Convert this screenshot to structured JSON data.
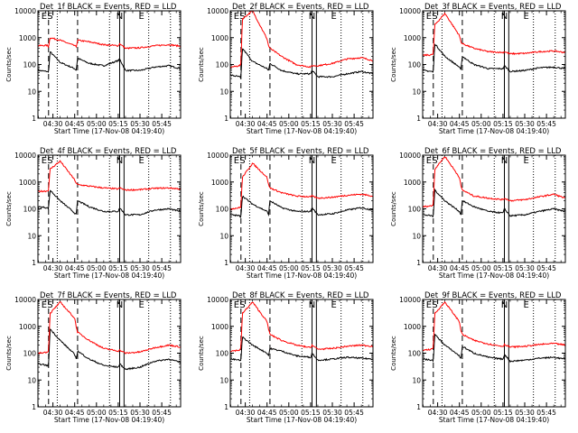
{
  "figure": {
    "ylabel": "Counts/sec",
    "xlabel": "Start Time (17-Nov-08 04:19:40)",
    "time_ticks": [
      "04:30",
      "04:45",
      "05:00",
      "05:15",
      "05:30",
      "05:45"
    ],
    "y_ticks": [
      "1",
      "10",
      "100",
      "1000",
      "10000"
    ],
    "ylim": [
      1,
      10000
    ],
    "y_scale": "log",
    "x_axis_start": "04:19:40",
    "x_axis_end": "05:58:00",
    "series_colors": {
      "events": "#000000",
      "lld": "#ff0000"
    },
    "markers": {
      "letters": [
        {
          "label": "E",
          "time": "04:24"
        },
        {
          "label": "S",
          "time": "04:28"
        },
        {
          "label": "N",
          "time": "05:16"
        },
        {
          "label": "E",
          "time": "05:31"
        }
      ],
      "solid_lines": [
        "05:16",
        "05:19"
      ],
      "dashed_lines": [
        "04:27",
        "04:47"
      ],
      "dotted_lines": [
        "04:33",
        "05:09",
        "05:36",
        "05:51"
      ]
    }
  },
  "chart_data": [
    {
      "type": "line",
      "title": "Det_1f BLACK = Events, RED = LLD",
      "series": [
        {
          "name": "Events",
          "x": [
            "04:20",
            "04:26",
            "04:27",
            "04:28",
            "04:35",
            "04:45",
            "04:46",
            "04:47",
            "04:55",
            "05:05",
            "05:15",
            "05:16",
            "05:20",
            "05:30",
            "05:40",
            "05:50",
            "05:58"
          ],
          "y": [
            60,
            55,
            50,
            300,
            120,
            70,
            60,
            170,
            110,
            90,
            140,
            160,
            60,
            60,
            80,
            90,
            70
          ]
        },
        {
          "name": "LLD",
          "x": [
            "04:20",
            "04:26",
            "04:27",
            "04:28",
            "04:35",
            "04:45",
            "04:46",
            "04:47",
            "04:55",
            "05:05",
            "05:15",
            "05:16",
            "05:20",
            "05:30",
            "05:40",
            "05:50",
            "05:58"
          ],
          "y": [
            500,
            520,
            450,
            1000,
            800,
            500,
            450,
            800,
            700,
            550,
            500,
            600,
            400,
            420,
            500,
            550,
            480
          ]
        }
      ]
    },
    {
      "type": "line",
      "title": "Det_2f BLACK = Events, RED = LLD",
      "series": [
        {
          "name": "Events",
          "x": [
            "04:20",
            "04:26",
            "04:27",
            "04:28",
            "04:35",
            "04:45",
            "04:46",
            "04:47",
            "04:55",
            "05:05",
            "05:15",
            "05:16",
            "05:20",
            "05:30",
            "05:40",
            "05:50",
            "05:58"
          ],
          "y": [
            40,
            35,
            30,
            400,
            130,
            70,
            60,
            110,
            60,
            45,
            45,
            60,
            35,
            35,
            45,
            55,
            45
          ]
        },
        {
          "name": "LLD",
          "x": [
            "04:20",
            "04:26",
            "04:27",
            "04:28",
            "04:35",
            "04:45",
            "04:46",
            "04:47",
            "04:55",
            "05:05",
            "05:15",
            "05:16",
            "05:20",
            "05:30",
            "05:40",
            "05:50",
            "05:58"
          ],
          "y": [
            80,
            90,
            100,
            5000,
            10000,
            900,
            500,
            400,
            200,
            100,
            80,
            90,
            90,
            110,
            160,
            180,
            140
          ]
        }
      ]
    },
    {
      "type": "line",
      "title": "Det_3f BLACK = Events, RED = LLD",
      "series": [
        {
          "name": "Events",
          "x": [
            "04:20",
            "04:26",
            "04:27",
            "04:28",
            "04:35",
            "04:45",
            "04:46",
            "04:47",
            "04:55",
            "05:05",
            "05:15",
            "05:16",
            "05:20",
            "05:30",
            "05:40",
            "05:50",
            "05:58"
          ],
          "y": [
            60,
            55,
            50,
            600,
            200,
            80,
            60,
            200,
            100,
            70,
            70,
            90,
            55,
            60,
            75,
            80,
            70
          ]
        },
        {
          "name": "LLD",
          "x": [
            "04:20",
            "04:26",
            "04:27",
            "04:28",
            "04:35",
            "04:45",
            "04:46",
            "04:47",
            "04:55",
            "05:05",
            "05:15",
            "05:16",
            "05:20",
            "05:30",
            "05:40",
            "05:50",
            "05:58"
          ],
          "y": [
            220,
            230,
            250,
            3000,
            8000,
            1200,
            700,
            600,
            400,
            300,
            280,
            300,
            250,
            260,
            300,
            320,
            280
          ]
        }
      ]
    },
    {
      "type": "line",
      "title": "Det_4f BLACK = Events, RED = LLD",
      "series": [
        {
          "name": "Events",
          "x": [
            "04:20",
            "04:26",
            "04:27",
            "04:28",
            "04:35",
            "04:45",
            "04:46",
            "04:47",
            "04:55",
            "05:05",
            "05:15",
            "05:16",
            "05:20",
            "05:30",
            "05:40",
            "05:50",
            "05:58"
          ],
          "y": [
            120,
            110,
            100,
            500,
            200,
            70,
            60,
            200,
            120,
            80,
            80,
            110,
            60,
            60,
            90,
            100,
            80
          ]
        },
        {
          "name": "LLD",
          "x": [
            "04:20",
            "04:26",
            "04:27",
            "04:28",
            "04:35",
            "04:45",
            "04:46",
            "04:47",
            "04:55",
            "05:05",
            "05:15",
            "05:16",
            "05:20",
            "05:30",
            "05:40",
            "05:50",
            "05:58"
          ],
          "y": [
            450,
            460,
            500,
            3000,
            6000,
            1200,
            900,
            800,
            700,
            600,
            550,
            600,
            500,
            520,
            580,
            600,
            550
          ]
        }
      ]
    },
    {
      "type": "line",
      "title": "Det_5f BLACK = Events, RED = LLD",
      "series": [
        {
          "name": "Events",
          "x": [
            "04:20",
            "04:26",
            "04:27",
            "04:28",
            "04:35",
            "04:45",
            "04:46",
            "04:47",
            "04:55",
            "05:05",
            "05:15",
            "05:16",
            "05:20",
            "05:30",
            "05:40",
            "05:50",
            "05:58"
          ],
          "y": [
            60,
            55,
            50,
            300,
            150,
            80,
            60,
            200,
            110,
            80,
            80,
            110,
            60,
            65,
            90,
            110,
            90
          ]
        },
        {
          "name": "LLD",
          "x": [
            "04:20",
            "04:26",
            "04:27",
            "04:28",
            "04:35",
            "04:45",
            "04:46",
            "04:47",
            "04:55",
            "05:05",
            "05:15",
            "05:16",
            "05:20",
            "05:30",
            "05:40",
            "05:50",
            "05:58"
          ],
          "y": [
            100,
            110,
            120,
            1500,
            5000,
            1500,
            800,
            600,
            400,
            300,
            280,
            300,
            250,
            270,
            320,
            350,
            300
          ]
        }
      ]
    },
    {
      "type": "line",
      "title": "Det_6f BLACK = Events, RED = LLD",
      "series": [
        {
          "name": "Events",
          "x": [
            "04:20",
            "04:26",
            "04:27",
            "04:28",
            "04:35",
            "04:45",
            "04:46",
            "04:47",
            "04:55",
            "05:05",
            "05:15",
            "05:16",
            "05:20",
            "05:30",
            "05:40",
            "05:50",
            "05:58"
          ],
          "y": [
            60,
            55,
            50,
            500,
            200,
            80,
            60,
            200,
            120,
            80,
            70,
            100,
            55,
            60,
            80,
            100,
            80
          ]
        },
        {
          "name": "LLD",
          "x": [
            "04:20",
            "04:26",
            "04:27",
            "04:28",
            "04:35",
            "04:45",
            "04:46",
            "04:47",
            "04:55",
            "05:05",
            "05:15",
            "05:16",
            "05:20",
            "05:30",
            "05:40",
            "05:50",
            "05:58"
          ],
          "y": [
            120,
            130,
            150,
            3000,
            9000,
            1500,
            700,
            500,
            300,
            250,
            220,
            250,
            200,
            220,
            280,
            350,
            250
          ]
        }
      ]
    },
    {
      "type": "line",
      "title": "Det_7f BLACK = Events, RED = LLD",
      "series": [
        {
          "name": "Events",
          "x": [
            "04:20",
            "04:26",
            "04:27",
            "04:28",
            "04:35",
            "04:45",
            "04:46",
            "04:47",
            "04:55",
            "05:05",
            "05:15",
            "05:16",
            "05:20",
            "05:30",
            "05:40",
            "05:50",
            "05:58"
          ],
          "y": [
            40,
            35,
            30,
            800,
            300,
            90,
            60,
            120,
            60,
            35,
            30,
            40,
            25,
            30,
            50,
            60,
            45
          ]
        },
        {
          "name": "LLD",
          "x": [
            "04:20",
            "04:26",
            "04:27",
            "04:28",
            "04:35",
            "04:45",
            "04:46",
            "04:47",
            "04:55",
            "05:05",
            "05:15",
            "05:16",
            "05:20",
            "05:30",
            "05:40",
            "05:50",
            "05:58"
          ],
          "y": [
            100,
            110,
            120,
            3000,
            8000,
            2000,
            1000,
            600,
            300,
            150,
            120,
            130,
            100,
            110,
            160,
            200,
            170
          ]
        }
      ]
    },
    {
      "type": "line",
      "title": "Det_8f BLACK = Events, RED = LLD",
      "series": [
        {
          "name": "Events",
          "x": [
            "04:20",
            "04:26",
            "04:27",
            "04:28",
            "04:35",
            "04:45",
            "04:46",
            "04:47",
            "04:55",
            "05:05",
            "05:15",
            "05:16",
            "05:20",
            "05:30",
            "05:40",
            "05:50",
            "05:58"
          ],
          "y": [
            60,
            55,
            50,
            400,
            200,
            100,
            80,
            150,
            120,
            80,
            70,
            100,
            55,
            60,
            70,
            65,
            60
          ]
        },
        {
          "name": "LLD",
          "x": [
            "04:20",
            "04:26",
            "04:27",
            "04:28",
            "04:35",
            "04:45",
            "04:46",
            "04:47",
            "04:55",
            "05:05",
            "05:15",
            "05:16",
            "05:20",
            "05:30",
            "05:40",
            "05:50",
            "05:58"
          ],
          "y": [
            120,
            130,
            150,
            3000,
            8000,
            1500,
            800,
            500,
            300,
            200,
            160,
            200,
            140,
            150,
            180,
            200,
            180
          ]
        }
      ]
    },
    {
      "type": "line",
      "title": "Det_9f BLACK = Events, RED = LLD",
      "series": [
        {
          "name": "Events",
          "x": [
            "04:20",
            "04:26",
            "04:27",
            "04:28",
            "04:35",
            "04:45",
            "04:46",
            "04:47",
            "04:55",
            "05:05",
            "05:15",
            "05:16",
            "05:20",
            "05:30",
            "05:40",
            "05:50",
            "05:58"
          ],
          "y": [
            60,
            55,
            50,
            500,
            200,
            80,
            60,
            180,
            100,
            70,
            60,
            90,
            50,
            55,
            65,
            70,
            60
          ]
        },
        {
          "name": "LLD",
          "x": [
            "04:20",
            "04:26",
            "04:27",
            "04:28",
            "04:35",
            "04:45",
            "04:46",
            "04:47",
            "04:55",
            "05:05",
            "05:15",
            "05:16",
            "05:20",
            "05:30",
            "05:40",
            "05:50",
            "05:58"
          ],
          "y": [
            130,
            140,
            160,
            3000,
            8000,
            1500,
            700,
            500,
            300,
            220,
            180,
            210,
            170,
            180,
            210,
            230,
            200
          ]
        }
      ]
    }
  ]
}
